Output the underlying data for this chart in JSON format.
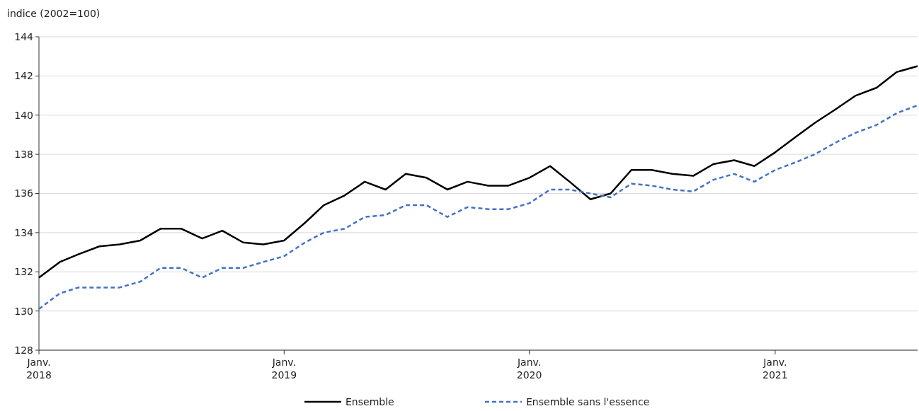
{
  "chart_data": {
    "type": "line",
    "ylabel": "indice (2002=100)",
    "legend": "bottom",
    "grid": "y",
    "xlim": [
      "2018-01",
      "2021-08"
    ],
    "ylim": [
      128,
      144
    ],
    "yticks": [
      128,
      130,
      132,
      134,
      136,
      138,
      140,
      142,
      144
    ],
    "xticks": [
      {
        "value": "2018-01",
        "label": "Janv.\n2018"
      },
      {
        "value": "2019-01",
        "label": "Janv.\n2019"
      },
      {
        "value": "2020-01",
        "label": "Janv.\n2020"
      },
      {
        "value": "2021-01",
        "label": "Janv.\n2021"
      }
    ],
    "x": [
      "2018-01",
      "2018-02",
      "2018-03",
      "2018-04",
      "2018-05",
      "2018-06",
      "2018-07",
      "2018-08",
      "2018-09",
      "2018-10",
      "2018-11",
      "2018-12",
      "2019-01",
      "2019-02",
      "2019-03",
      "2019-04",
      "2019-05",
      "2019-06",
      "2019-07",
      "2019-08",
      "2019-09",
      "2019-10",
      "2019-11",
      "2019-12",
      "2020-01",
      "2020-02",
      "2020-03",
      "2020-04",
      "2020-05",
      "2020-06",
      "2020-07",
      "2020-08",
      "2020-09",
      "2020-10",
      "2020-11",
      "2020-12",
      "2021-01",
      "2021-02",
      "2021-03",
      "2021-04",
      "2021-05",
      "2021-06",
      "2021-07",
      "2021-08"
    ],
    "series": [
      {
        "name": "Ensemble",
        "color": "#000000",
        "line_style": "solid",
        "values": [
          131.7,
          132.5,
          132.9,
          133.3,
          133.4,
          133.6,
          134.2,
          134.2,
          133.7,
          134.1,
          133.5,
          133.4,
          133.6,
          134.5,
          135.4,
          135.9,
          136.6,
          136.2,
          137.0,
          136.8,
          136.2,
          136.6,
          136.4,
          136.4,
          136.8,
          137.4,
          136.6,
          135.7,
          136.0,
          137.2,
          137.2,
          137.0,
          136.9,
          137.5,
          137.7,
          137.4,
          138.1,
          138.9,
          139.6,
          140.3,
          141.0,
          141.4,
          142.2,
          142.5
        ]
      },
      {
        "name": "Ensemble sans l'essence",
        "color": "#4472c4",
        "line_style": "dashed",
        "values": [
          130.1,
          130.9,
          131.2,
          131.2,
          131.2,
          131.5,
          132.2,
          132.2,
          131.7,
          132.2,
          132.2,
          132.5,
          132.8,
          133.5,
          134.0,
          134.2,
          134.8,
          134.9,
          135.4,
          135.4,
          134.8,
          135.3,
          135.2,
          135.2,
          135.5,
          136.2,
          136.2,
          136.0,
          135.8,
          136.5,
          136.4,
          136.2,
          136.1,
          136.7,
          137.0,
          136.6,
          137.2,
          137.6,
          138.0,
          138.6,
          139.1,
          139.5,
          140.1,
          140.5
        ]
      }
    ]
  }
}
